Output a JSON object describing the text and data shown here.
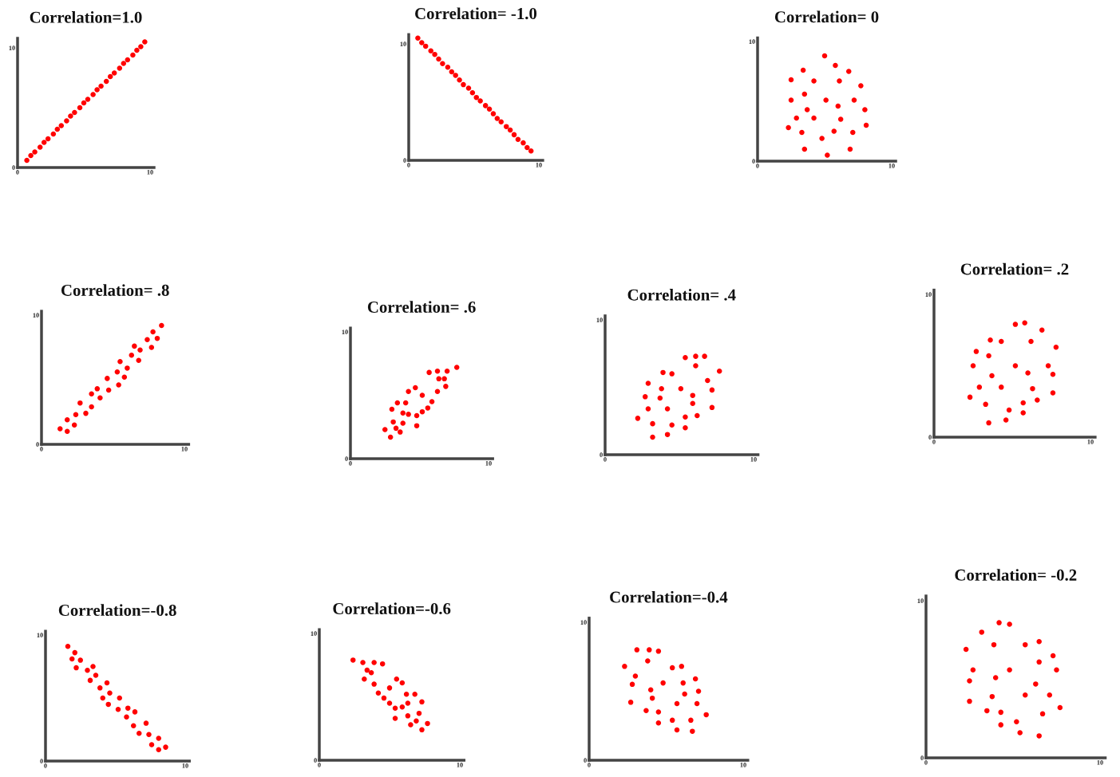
{
  "chart_data": [
    {
      "type": "scatter",
      "title": "Correlation=1.0",
      "marker": "circle",
      "color": "#ff0000",
      "xlim": [
        0,
        10.3
      ],
      "ylim": [
        0,
        10.8
      ],
      "xticks": [
        0,
        10
      ],
      "yticks": [
        0,
        10
      ],
      "x": [
        0.7,
        1.0,
        1.3,
        1.7,
        2.0,
        2.3,
        2.7,
        3.0,
        3.3,
        3.7,
        4.0,
        4.3,
        4.7,
        5.0,
        5.3,
        5.7,
        6.0,
        6.3,
        6.7,
        7.0,
        7.3,
        7.7,
        8.0,
        8.3,
        8.7,
        9.0,
        9.3,
        9.6
      ],
      "values": [
        0.6,
        1.0,
        1.3,
        1.7,
        2.1,
        2.4,
        2.8,
        3.2,
        3.5,
        3.9,
        4.3,
        4.6,
        5.0,
        5.4,
        5.7,
        6.1,
        6.5,
        6.8,
        7.2,
        7.6,
        7.9,
        8.3,
        8.7,
        9.0,
        9.4,
        9.8,
        10.1,
        10.5
      ]
    },
    {
      "type": "scatter",
      "title": "Correlation= -1.0",
      "marker": "circle",
      "color": "#ff0000",
      "xlim": [
        0,
        10.3
      ],
      "ylim": [
        0,
        10.8
      ],
      "xticks": [
        0,
        10
      ],
      "yticks": [
        0,
        10
      ],
      "x": [
        0.7,
        1.0,
        1.3,
        1.7,
        2.0,
        2.3,
        2.6,
        3.0,
        3.3,
        3.6,
        3.9,
        4.2,
        4.6,
        4.9,
        5.2,
        5.5,
        5.9,
        6.2,
        6.5,
        6.8,
        7.1,
        7.5,
        7.8,
        8.1,
        8.4,
        8.8,
        9.1,
        9.4
      ],
      "values": [
        10.5,
        10.1,
        9.8,
        9.4,
        9.1,
        8.7,
        8.3,
        8.0,
        7.6,
        7.3,
        6.9,
        6.5,
        6.2,
        5.8,
        5.4,
        5.1,
        4.7,
        4.4,
        4.0,
        3.6,
        3.3,
        2.9,
        2.6,
        2.2,
        1.8,
        1.5,
        1.1,
        0.8
      ]
    },
    {
      "type": "scatter",
      "title": "Correlation= 0",
      "marker": "circle",
      "color": "#ff0000",
      "xlim": [
        0,
        10.3
      ],
      "ylim": [
        0,
        10.3
      ],
      "xticks": [
        0,
        10
      ],
      "yticks": [
        0,
        10
      ],
      "x": [
        5.0,
        5.8,
        3.4,
        6.8,
        2.5,
        4.2,
        6.1,
        7.7,
        3.5,
        2.5,
        5.1,
        7.2,
        6.0,
        3.7,
        8.0,
        2.9,
        4.2,
        6.2,
        2.3,
        8.1,
        3.3,
        5.7,
        7.1,
        4.8,
        3.5,
        6.9,
        5.2
      ],
      "values": [
        8.8,
        8.0,
        7.6,
        7.5,
        6.8,
        6.7,
        6.7,
        6.3,
        5.6,
        5.1,
        5.1,
        5.1,
        4.6,
        4.3,
        4.3,
        3.6,
        3.6,
        3.5,
        2.8,
        3.0,
        2.4,
        2.5,
        2.4,
        1.9,
        1.0,
        1.0,
        0.5
      ]
    },
    {
      "type": "scatter",
      "title": "Correlation= .8",
      "marker": "circle",
      "color": "#ff0000",
      "xlim": [
        0,
        10.3
      ],
      "ylim": [
        0,
        10.3
      ],
      "xticks": [
        0,
        10
      ],
      "yticks": [
        0,
        10
      ],
      "x": [
        1.3,
        1.8,
        1.8,
        2.3,
        2.4,
        2.7,
        3.1,
        3.5,
        3.5,
        3.9,
        4.1,
        4.6,
        4.7,
        5.4,
        5.3,
        5.5,
        5.8,
        6.0,
        6.3,
        6.5,
        6.8,
        6.9,
        7.4,
        7.7,
        7.8,
        8.1,
        8.4
      ],
      "values": [
        1.2,
        1.0,
        1.9,
        1.5,
        2.3,
        3.2,
        2.4,
        2.9,
        3.9,
        4.3,
        3.6,
        5.1,
        4.2,
        4.6,
        5.6,
        6.4,
        5.2,
        5.9,
        6.9,
        7.6,
        6.5,
        7.3,
        8.1,
        7.5,
        8.7,
        8.2,
        9.2
      ]
    },
    {
      "type": "scatter",
      "title": "Correlation= .6",
      "marker": "circle",
      "color": "#ff0000",
      "xlim": [
        0,
        10.3
      ],
      "ylim": [
        0,
        10.3
      ],
      "xticks": [
        0,
        10
      ],
      "yticks": [
        0,
        10
      ],
      "x": [
        2.5,
        2.9,
        3.0,
        3.1,
        3.3,
        3.4,
        3.6,
        3.8,
        3.8,
        4.0,
        4.2,
        4.2,
        4.7,
        4.8,
        4.8,
        5.2,
        5.2,
        5.6,
        5.7,
        5.9,
        6.3,
        6.3,
        6.4,
        6.8,
        6.9,
        7.0,
        7.7
      ],
      "values": [
        2.3,
        1.7,
        3.9,
        2.9,
        2.4,
        4.4,
        2.1,
        3.6,
        2.8,
        4.4,
        5.3,
        3.5,
        5.6,
        3.4,
        2.6,
        5.0,
        3.7,
        4.0,
        6.8,
        4.5,
        6.9,
        5.3,
        6.3,
        6.3,
        5.7,
        6.9,
        7.2
      ]
    },
    {
      "type": "scatter",
      "title": "Correlation= .4",
      "marker": "circle",
      "color": "#ff0000",
      "xlim": [
        0,
        10.3
      ],
      "ylim": [
        0,
        10.3
      ],
      "xticks": [
        0,
        10
      ],
      "yticks": [
        0,
        10
      ],
      "x": [
        2.2,
        2.9,
        2.7,
        2.9,
        3.2,
        3.2,
        3.8,
        3.7,
        3.9,
        4.2,
        4.2,
        4.5,
        4.5,
        5.1,
        5.4,
        5.4,
        5.4,
        5.9,
        5.9,
        6.1,
        6.1,
        6.2,
        6.7,
        6.9,
        7.2,
        7.2,
        7.7
      ],
      "values": [
        2.7,
        5.3,
        4.3,
        3.4,
        2.3,
        1.3,
        4.9,
        4.2,
        6.1,
        3.4,
        1.5,
        2.2,
        6.0,
        4.9,
        2.8,
        2.0,
        7.2,
        3.8,
        4.4,
        7.3,
        6.6,
        2.9,
        7.3,
        5.5,
        4.8,
        3.5,
        6.2
      ]
    },
    {
      "type": "scatter",
      "title": "Correlation= .2",
      "marker": "circle",
      "color": "#ff0000",
      "xlim": [
        0,
        10.3
      ],
      "ylim": [
        0,
        10.3
      ],
      "xticks": [
        0,
        10
      ],
      "yticks": [
        0,
        10
      ],
      "x": [
        2.3,
        2.5,
        2.7,
        2.9,
        3.3,
        3.5,
        3.6,
        3.5,
        3.7,
        4.3,
        4.3,
        4.6,
        4.8,
        5.2,
        5.2,
        5.7,
        5.7,
        5.8,
        6.0,
        6.2,
        6.3,
        6.6,
        6.9,
        7.3,
        7.6,
        7.6,
        7.8
      ],
      "values": [
        2.8,
        5.0,
        6.0,
        3.5,
        2.3,
        5.7,
        6.8,
        1.0,
        4.3,
        6.7,
        3.5,
        1.2,
        1.9,
        7.9,
        5.0,
        2.4,
        1.7,
        8.0,
        4.5,
        6.7,
        3.4,
        2.6,
        7.5,
        5.0,
        4.4,
        3.1,
        6.3
      ]
    },
    {
      "type": "scatter",
      "title": "Correlation=-0.8",
      "marker": "circle",
      "color": "#ff0000",
      "xlim": [
        0,
        10.3
      ],
      "ylim": [
        0,
        10.3
      ],
      "xticks": [
        0,
        10
      ],
      "yticks": [
        0,
        10
      ],
      "x": [
        1.6,
        2.1,
        1.9,
        2.5,
        2.2,
        3.0,
        3.4,
        3.2,
        3.6,
        3.9,
        4.4,
        4.1,
        4.6,
        4.5,
        5.3,
        5.2,
        5.9,
        5.8,
        6.4,
        6.3,
        6.7,
        7.2,
        7.4,
        7.6,
        8.1,
        8.1,
        8.6
      ],
      "values": [
        9.1,
        8.6,
        8.1,
        8.0,
        7.4,
        7.2,
        7.5,
        6.4,
        6.8,
        5.8,
        6.2,
        5.0,
        5.4,
        4.5,
        5.0,
        4.1,
        4.2,
        3.5,
        3.9,
        2.8,
        2.2,
        3.0,
        2.1,
        1.3,
        1.8,
        0.9,
        1.1
      ]
    },
    {
      "type": "scatter",
      "title": "Correlation=-0.6",
      "marker": "circle",
      "color": "#ff0000",
      "xlim": [
        0,
        10.3
      ],
      "ylim": [
        0,
        10.3
      ],
      "xticks": [
        0,
        10
      ],
      "yticks": [
        0,
        10
      ],
      "x": [
        2.4,
        3.1,
        3.9,
        4.5,
        3.4,
        3.7,
        3.2,
        3.9,
        4.2,
        4.6,
        5.0,
        5.0,
        5.4,
        5.4,
        5.5,
        5.9,
        5.9,
        6.2,
        6.3,
        6.3,
        6.5,
        6.8,
        6.9,
        7.1,
        7.3,
        7.3,
        7.7
      ],
      "values": [
        7.9,
        7.7,
        7.7,
        7.6,
        7.1,
        6.9,
        6.4,
        6.0,
        5.3,
        4.9,
        5.7,
        4.5,
        4.1,
        3.3,
        6.4,
        6.1,
        4.2,
        5.2,
        4.5,
        3.5,
        2.8,
        5.2,
        3.1,
        3.7,
        4.6,
        2.4,
        2.9
      ]
    },
    {
      "type": "scatter",
      "title": "Correlation=-0.4",
      "marker": "circle",
      "color": "#ff0000",
      "xlim": [
        0,
        10.3
      ],
      "ylim": [
        0,
        10.3
      ],
      "xticks": [
        0,
        10
      ],
      "yticks": [
        0,
        10
      ],
      "x": [
        2.3,
        3.1,
        3.9,
        4.5,
        3.8,
        3.0,
        2.8,
        2.7,
        3.7,
        4.0,
        4.1,
        4.5,
        4.5,
        4.8,
        5.4,
        6.0,
        6.1,
        6.2,
        5.7,
        5.4,
        5.7,
        6.9,
        7.1,
        7.0,
        6.6,
        6.7,
        7.6
      ],
      "values": [
        6.8,
        8.0,
        8.0,
        7.9,
        7.2,
        6.1,
        5.5,
        4.2,
        3.6,
        5.1,
        4.5,
        3.5,
        2.7,
        5.6,
        6.7,
        6.8,
        5.6,
        4.8,
        4.1,
        2.9,
        2.2,
        5.9,
        5.0,
        4.1,
        2.9,
        2.1,
        3.3
      ]
    },
    {
      "type": "scatter",
      "title": "Correlation= -0.2",
      "marker": "circle",
      "color": "#ff0000",
      "xlim": [
        0,
        10.3
      ],
      "ylim": [
        0,
        10.3
      ],
      "xticks": [
        0,
        10
      ],
      "yticks": [
        0,
        10
      ],
      "x": [
        2.3,
        3.2,
        4.2,
        4.8,
        3.9,
        5.7,
        6.5,
        7.3,
        6.5,
        2.7,
        2.5,
        4.8,
        4.0,
        7.5,
        6.3,
        2.5,
        3.8,
        5.7,
        7.1,
        3.5,
        4.3,
        4.3,
        5.2,
        5.4,
        6.5,
        6.7,
        7.7
      ],
      "values": [
        6.9,
        8.0,
        8.6,
        8.5,
        7.2,
        7.2,
        7.4,
        6.5,
        6.1,
        5.6,
        4.9,
        5.6,
        5.1,
        5.6,
        4.7,
        3.6,
        3.9,
        4.0,
        4.0,
        3.0,
        2.9,
        2.1,
        2.3,
        1.6,
        1.4,
        2.8,
        3.2
      ]
    }
  ]
}
